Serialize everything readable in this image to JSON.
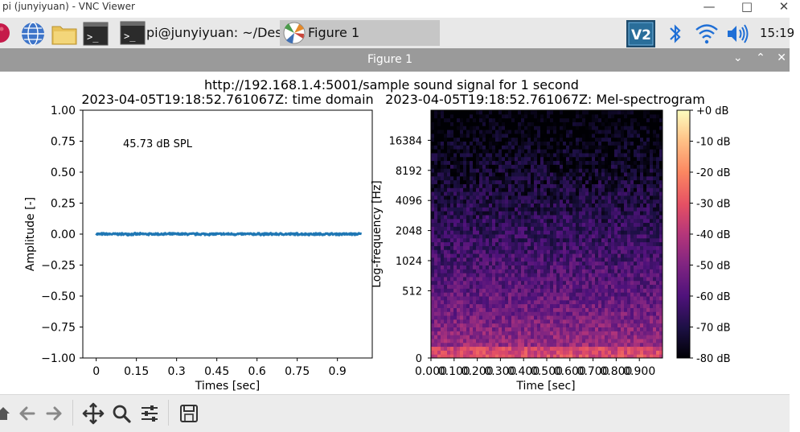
{
  "window": {
    "title": "pi (junyiyuan) - VNC Viewer"
  },
  "taskbar": {
    "tasks": [
      {
        "label": "pi@junyiyuan: ~/Des..."
      },
      {
        "label": "Figure 1"
      }
    ],
    "clock": "15:19"
  },
  "figure": {
    "window_title": "Figure 1",
    "suptitle": "http://192.168.1.4:5001/sample sound signal for 1 second",
    "toolbar_tools": [
      "home-icon",
      "back-arrow-icon",
      "forward-arrow-icon",
      "pan-icon",
      "zoom-icon",
      "configure-subplots-icon",
      "save-icon"
    ]
  },
  "colors": {
    "signal_line": "#1f77b4",
    "figure_title_bar": "#9a9a9a",
    "taskbar": "#e8e8e8"
  },
  "chart_data": [
    {
      "type": "line",
      "title": "2023-04-05T19:18:52.761067Z: time domain",
      "xlabel": "Times [sec]",
      "ylabel": "Amplitude [-]",
      "annotation": "45.73 dB SPL",
      "x_ticks": [
        "0",
        "0.15",
        "0.3",
        "0.45",
        "0.6",
        "0.75",
        "0.9"
      ],
      "y_ticks": [
        "1.00",
        "0.75",
        "0.50",
        "0.25",
        "0.00",
        "−0.25",
        "−0.50",
        "−0.75",
        "−1.00"
      ],
      "xlim": [
        -0.05,
        1.03
      ],
      "ylim": [
        -1.0,
        1.0
      ],
      "series": [
        {
          "x_range": [
            0,
            0.99
          ],
          "y_approx": 0.0,
          "amplitude": 0.01
        }
      ]
    },
    {
      "type": "heatmap",
      "title": "2023-04-05T19:18:52.761067Z: Mel-spectrogram",
      "xlabel": "Time [sec]",
      "ylabel": "Log-frequency [Hz]",
      "x_ticks": [
        "0.000",
        "0.100",
        "0.200",
        "0.300",
        "0.400",
        "0.500",
        "0.600",
        "0.700",
        "0.800",
        "0.900"
      ],
      "y_ticks": [
        "0",
        "512",
        "1024",
        "2048",
        "4096",
        "8192",
        "16384"
      ],
      "colorbar_ticks": [
        "+0 dB",
        "-10 dB",
        "-20 dB",
        "-30 dB",
        "-40 dB",
        "-50 dB",
        "-60 dB",
        "-70 dB",
        "-80 dB"
      ],
      "colormap": "magma",
      "value_range_db": [
        -80,
        0
      ]
    }
  ]
}
